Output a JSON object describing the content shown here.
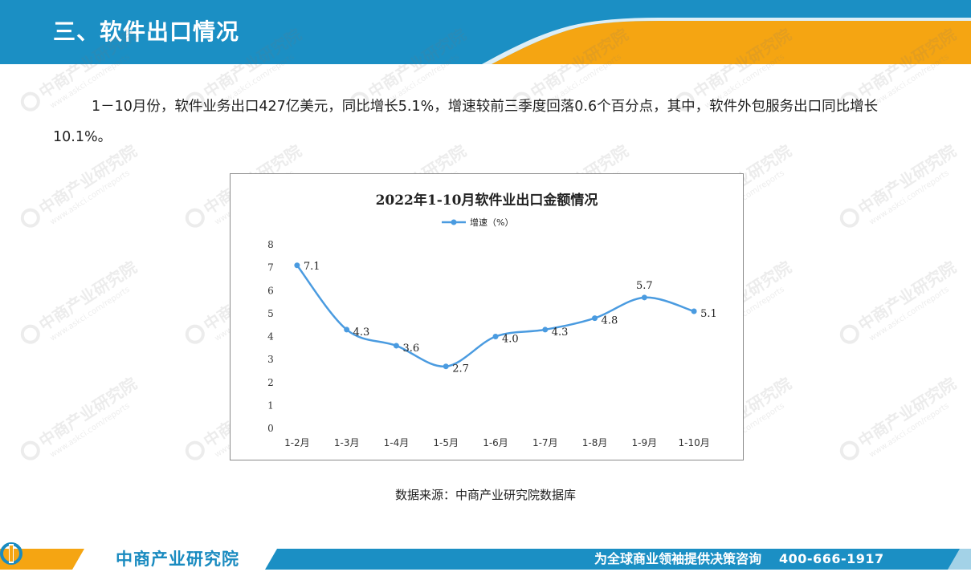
{
  "header": {
    "title": "三、软件出口情况",
    "colors": {
      "blue": "#1b8fc4",
      "orange": "#f5a512"
    }
  },
  "watermark": {
    "cn": "中商产业研究院",
    "url": "www.askci.com/reports"
  },
  "paragraph": "1－10月份，软件业务出口427亿美元，同比增长5.1%，增速较前三季度回落0.6个百分点，其中，软件外包服务出口同比增长10.1%。",
  "chart_data": {
    "type": "line",
    "title": "2022年1-10月软件业出口金额情况",
    "categories": [
      "1-2月",
      "1-3月",
      "1-4月",
      "1-5月",
      "1-6月",
      "1-7月",
      "1-8月",
      "1-9月",
      "1-10月"
    ],
    "series": [
      {
        "name": "增速（%）",
        "values": [
          7.1,
          4.3,
          3.6,
          2.7,
          4.0,
          4.3,
          4.8,
          5.7,
          5.1
        ],
        "color": "#4a9be0"
      }
    ],
    "data_labels": [
      "7.1",
      "4.3",
      "3.6",
      "2.7",
      "4.0",
      "4.3",
      "4.8",
      "5.7",
      "5.1"
    ],
    "y_ticks": [
      "0",
      "1",
      "2",
      "3",
      "4",
      "5",
      "6",
      "7",
      "8"
    ],
    "ylim": [
      0,
      8
    ],
    "smooth": true,
    "grid": false,
    "legend_position": "top-center"
  },
  "source": "数据来源：中商产业研究院数据库",
  "footer": {
    "brand": "中商产业研究院",
    "slogan": "为全球商业领袖提供决策咨询",
    "phone": "400-666-1917"
  }
}
